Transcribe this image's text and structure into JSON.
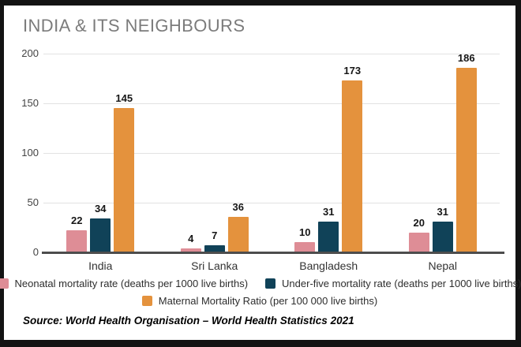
{
  "title": "INDIA & ITS NEIGHBOURS",
  "source": "Source: World Health Organisation – World Health Statistics 2021",
  "palette": {
    "neonatal_pink": "#de8d96",
    "under_five_blue": "#104258",
    "maternal_orange": "#e4923d",
    "title_gray": "#7b7b7b",
    "gridline_gray": "#e2e2e2",
    "axis_line_gray": "#4d4d4d",
    "frame_black": "#131313",
    "panel_white": "#ffffff"
  },
  "chart_data": {
    "type": "bar",
    "title": "INDIA & ITS NEIGHBOURS",
    "categories": [
      "India",
      "Sri Lanka",
      "Bangladesh",
      "Nepal"
    ],
    "series": [
      {
        "name": "Neonatal mortality rate (deaths per 1000 live births)",
        "color": "#de8d96",
        "values": [
          22,
          4,
          10,
          20
        ]
      },
      {
        "name": "Under-five mortality rate (deaths per 1000 live births)",
        "color": "#104258",
        "values": [
          34,
          7,
          31,
          31
        ]
      },
      {
        "name": "Maternal Mortality Ratio (per 100 000 live births)",
        "color": "#e4923d",
        "values": [
          145,
          36,
          173,
          186
        ]
      }
    ],
    "xlabel": "",
    "ylabel": "",
    "ylim": [
      0,
      200
    ],
    "yticks": [
      0,
      50,
      100,
      150,
      200
    ],
    "grid": true,
    "legend_position": "bottom",
    "value_labels": true
  }
}
